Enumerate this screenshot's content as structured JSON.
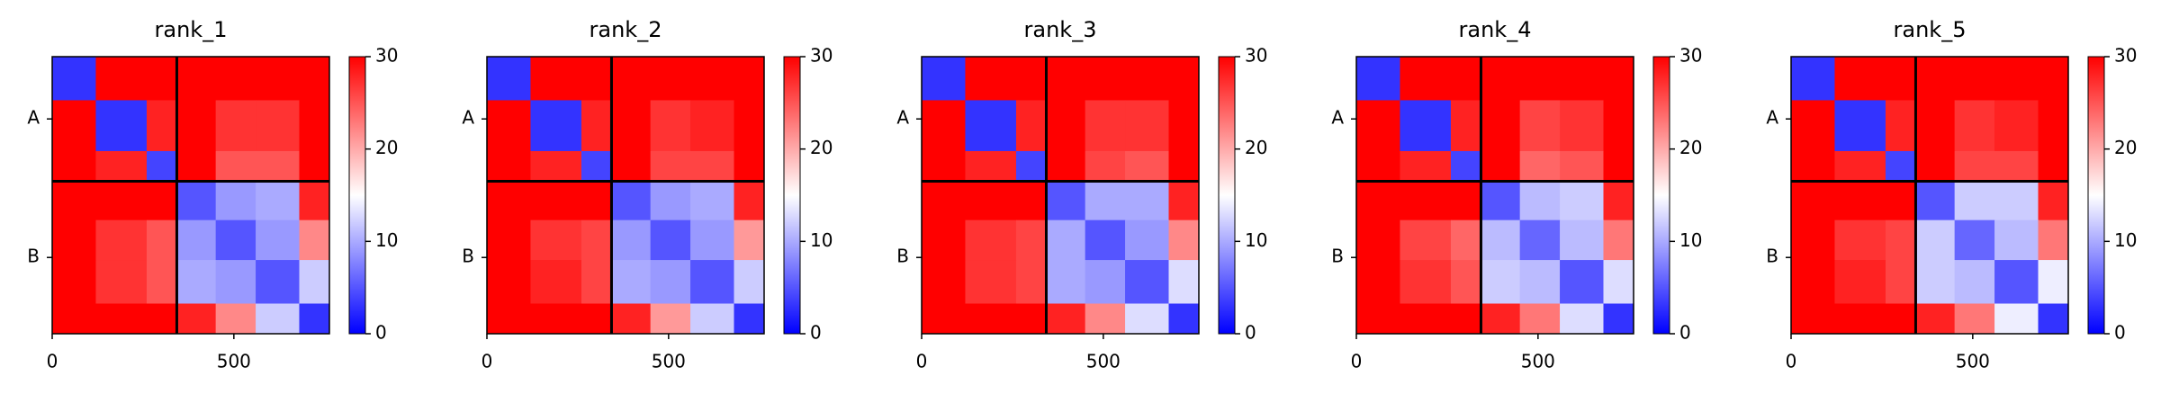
{
  "chart_data": [
    {
      "type": "heatmap",
      "title": "rank_1",
      "categories": [
        "A",
        "B"
      ],
      "chain_breaks": [
        343
      ],
      "bins": [
        0,
        120,
        260,
        343,
        450,
        560,
        680,
        763
      ],
      "xlim": [
        0,
        763
      ],
      "ylim": [
        763,
        0
      ],
      "xticks": [
        0,
        500
      ],
      "values": [
        [
          3,
          30,
          30,
          30,
          30,
          30,
          30
        ],
        [
          30,
          3,
          28,
          30,
          27,
          27,
          30
        ],
        [
          30,
          28,
          4,
          30,
          25,
          25,
          30
        ],
        [
          30,
          30,
          30,
          5,
          9,
          10,
          28
        ],
        [
          30,
          27,
          25,
          9,
          5,
          9,
          22
        ],
        [
          30,
          27,
          25,
          10,
          9,
          5,
          12
        ],
        [
          30,
          30,
          30,
          28,
          22,
          12,
          3
        ]
      ],
      "colorbar": {
        "lim": [
          0,
          30
        ],
        "ticks": [
          0,
          10,
          20,
          30
        ],
        "colormap": "bwr"
      }
    },
    {
      "type": "heatmap",
      "title": "rank_2",
      "categories": [
        "A",
        "B"
      ],
      "chain_breaks": [
        343
      ],
      "bins": [
        0,
        120,
        260,
        343,
        450,
        560,
        680,
        763
      ],
      "xlim": [
        0,
        763
      ],
      "ylim": [
        763,
        0
      ],
      "xticks": [
        0,
        500
      ],
      "values": [
        [
          3,
          30,
          30,
          30,
          30,
          30,
          30
        ],
        [
          30,
          3,
          28,
          30,
          27,
          28,
          30
        ],
        [
          30,
          28,
          4,
          30,
          26,
          26,
          30
        ],
        [
          30,
          30,
          30,
          5,
          9,
          10,
          28
        ],
        [
          30,
          27,
          26,
          9,
          5,
          9,
          21
        ],
        [
          30,
          28,
          26,
          10,
          9,
          5,
          12
        ],
        [
          30,
          30,
          30,
          28,
          21,
          12,
          3
        ]
      ],
      "colorbar": {
        "lim": [
          0,
          30
        ],
        "ticks": [
          0,
          10,
          20,
          30
        ],
        "colormap": "bwr"
      }
    },
    {
      "type": "heatmap",
      "title": "rank_3",
      "categories": [
        "A",
        "B"
      ],
      "chain_breaks": [
        343
      ],
      "bins": [
        0,
        120,
        260,
        343,
        450,
        560,
        680,
        763
      ],
      "xlim": [
        0,
        763
      ],
      "ylim": [
        763,
        0
      ],
      "xticks": [
        0,
        500
      ],
      "values": [
        [
          3,
          30,
          30,
          30,
          30,
          30,
          30
        ],
        [
          30,
          3,
          28,
          30,
          27,
          27,
          30
        ],
        [
          30,
          28,
          4,
          30,
          26,
          25,
          30
        ],
        [
          30,
          30,
          30,
          5,
          10,
          10,
          28
        ],
        [
          30,
          27,
          26,
          10,
          5,
          9,
          22
        ],
        [
          30,
          27,
          26,
          10,
          9,
          5,
          13
        ],
        [
          30,
          30,
          30,
          28,
          22,
          13,
          3
        ]
      ],
      "colorbar": {
        "lim": [
          0,
          30
        ],
        "ticks": [
          0,
          10,
          20,
          30
        ],
        "colormap": "bwr"
      }
    },
    {
      "type": "heatmap",
      "title": "rank_4",
      "categories": [
        "A",
        "B"
      ],
      "chain_breaks": [
        343
      ],
      "bins": [
        0,
        120,
        260,
        343,
        450,
        560,
        680,
        763
      ],
      "xlim": [
        0,
        763
      ],
      "ylim": [
        763,
        0
      ],
      "xticks": [
        0,
        500
      ],
      "values": [
        [
          3,
          30,
          30,
          30,
          30,
          30,
          30
        ],
        [
          30,
          3,
          28,
          30,
          26,
          27,
          30
        ],
        [
          30,
          28,
          4,
          30,
          24,
          25,
          30
        ],
        [
          30,
          30,
          30,
          5,
          11,
          12,
          28
        ],
        [
          30,
          26,
          24,
          11,
          6,
          11,
          23
        ],
        [
          30,
          27,
          25,
          12,
          11,
          5,
          13
        ],
        [
          30,
          30,
          30,
          28,
          23,
          13,
          3
        ]
      ],
      "colorbar": {
        "lim": [
          0,
          30
        ],
        "ticks": [
          0,
          10,
          20,
          30
        ],
        "colormap": "bwr"
      }
    },
    {
      "type": "heatmap",
      "title": "rank_5",
      "categories": [
        "A",
        "B"
      ],
      "chain_breaks": [
        343
      ],
      "bins": [
        0,
        120,
        260,
        343,
        450,
        560,
        680,
        763
      ],
      "xlim": [
        0,
        763
      ],
      "ylim": [
        763,
        0
      ],
      "xticks": [
        0,
        500
      ],
      "values": [
        [
          3,
          30,
          30,
          30,
          30,
          30,
          30
        ],
        [
          30,
          3,
          28,
          30,
          27,
          28,
          30
        ],
        [
          30,
          28,
          4,
          30,
          26,
          26,
          30
        ],
        [
          30,
          30,
          30,
          5,
          12,
          12,
          28
        ],
        [
          30,
          27,
          26,
          12,
          6,
          11,
          23
        ],
        [
          30,
          28,
          26,
          12,
          11,
          5,
          14
        ],
        [
          30,
          30,
          30,
          28,
          23,
          14,
          3
        ]
      ],
      "colorbar": {
        "lim": [
          0,
          30
        ],
        "ticks": [
          0,
          10,
          20,
          30
        ],
        "colormap": "bwr"
      }
    }
  ]
}
